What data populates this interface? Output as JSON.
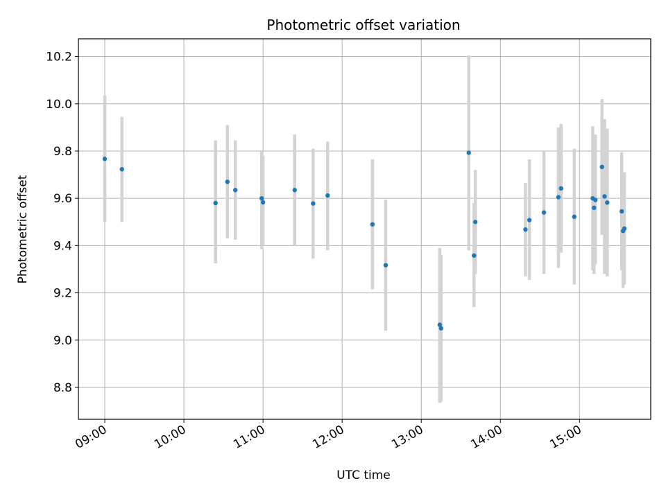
{
  "chart_data": {
    "type": "scatter",
    "title": "Photometric offset variation",
    "xlabel": "UTC time",
    "ylabel": "Photometric offset",
    "x_tick_labels": [
      "09:00",
      "10:00",
      "11:00",
      "12:00",
      "13:00",
      "14:00",
      "15:00"
    ],
    "y_tick_labels": [
      "8.8",
      "9.0",
      "9.2",
      "9.4",
      "9.6",
      "9.8",
      "10.0",
      "10.2"
    ],
    "x_ticks": [
      "09:00",
      "10:00",
      "11:00",
      "12:00",
      "13:00",
      "14:00",
      "15:00"
    ],
    "y_ticks": [
      8.8,
      9.0,
      9.2,
      9.4,
      9.6,
      9.8,
      10.0,
      10.2
    ],
    "xlim": [
      "08:40",
      "15:54"
    ],
    "ylim": [
      8.665,
      10.275
    ],
    "grid": true,
    "marker_color": "#1f77b4",
    "errorbar_color": "#d3d3d3",
    "points": [
      {
        "x": "09:00",
        "y": 9.767,
        "ylow": 9.5,
        "yhigh": 10.035
      },
      {
        "x": "09:13",
        "y": 9.723,
        "ylow": 9.5,
        "yhigh": 9.945
      },
      {
        "x": "10:24",
        "y": 9.58,
        "ylow": 9.325,
        "yhigh": 9.845
      },
      {
        "x": "10:33",
        "y": 9.67,
        "ylow": 9.43,
        "yhigh": 9.91
      },
      {
        "x": "10:39",
        "y": 9.635,
        "ylow": 9.425,
        "yhigh": 9.845
      },
      {
        "x": "10:59",
        "y": 9.6,
        "ylow": 9.385,
        "yhigh": 9.8
      },
      {
        "x": "11:00",
        "y": 9.583,
        "ylow": 9.4,
        "yhigh": 9.78
      },
      {
        "x": "11:24",
        "y": 9.635,
        "ylow": 9.4,
        "yhigh": 9.87
      },
      {
        "x": "11:38",
        "y": 9.578,
        "ylow": 9.345,
        "yhigh": 9.81
      },
      {
        "x": "11:49",
        "y": 9.612,
        "ylow": 9.38,
        "yhigh": 9.84
      },
      {
        "x": "12:23",
        "y": 9.49,
        "ylow": 9.215,
        "yhigh": 9.765
      },
      {
        "x": "12:33",
        "y": 9.317,
        "ylow": 9.04,
        "yhigh": 9.595
      },
      {
        "x": "13:14",
        "y": 9.065,
        "ylow": 8.735,
        "yhigh": 9.39
      },
      {
        "x": "13:15",
        "y": 9.05,
        "ylow": 8.74,
        "yhigh": 9.36
      },
      {
        "x": "13:36",
        "y": 9.793,
        "ylow": 9.38,
        "yhigh": 10.205
      },
      {
        "x": "13:40",
        "y": 9.358,
        "ylow": 9.14,
        "yhigh": 9.58
      },
      {
        "x": "13:41",
        "y": 9.5,
        "ylow": 9.28,
        "yhigh": 9.72
      },
      {
        "x": "14:19",
        "y": 9.468,
        "ylow": 9.27,
        "yhigh": 9.665
      },
      {
        "x": "14:22",
        "y": 9.508,
        "ylow": 9.255,
        "yhigh": 9.765
      },
      {
        "x": "14:33",
        "y": 9.54,
        "ylow": 9.28,
        "yhigh": 9.8
      },
      {
        "x": "14:44",
        "y": 9.605,
        "ylow": 9.305,
        "yhigh": 9.9
      },
      {
        "x": "14:46",
        "y": 9.642,
        "ylow": 9.37,
        "yhigh": 9.915
      },
      {
        "x": "14:56",
        "y": 9.522,
        "ylow": 9.235,
        "yhigh": 9.81
      },
      {
        "x": "15:10",
        "y": 9.6,
        "ylow": 9.295,
        "yhigh": 9.905
      },
      {
        "x": "15:11",
        "y": 9.56,
        "ylow": 9.28,
        "yhigh": 9.87
      },
      {
        "x": "15:12",
        "y": 9.593,
        "ylow": 9.32,
        "yhigh": 9.87
      },
      {
        "x": "15:17",
        "y": 9.733,
        "ylow": 9.445,
        "yhigh": 10.02
      },
      {
        "x": "15:19",
        "y": 9.608,
        "ylow": 9.28,
        "yhigh": 9.935
      },
      {
        "x": "15:21",
        "y": 9.582,
        "ylow": 9.27,
        "yhigh": 9.895
      },
      {
        "x": "15:32",
        "y": 9.545,
        "ylow": 9.295,
        "yhigh": 9.795
      },
      {
        "x": "15:33",
        "y": 9.462,
        "ylow": 9.22,
        "yhigh": 9.705
      },
      {
        "x": "15:34",
        "y": 9.472,
        "ylow": 9.235,
        "yhigh": 9.71
      }
    ]
  }
}
